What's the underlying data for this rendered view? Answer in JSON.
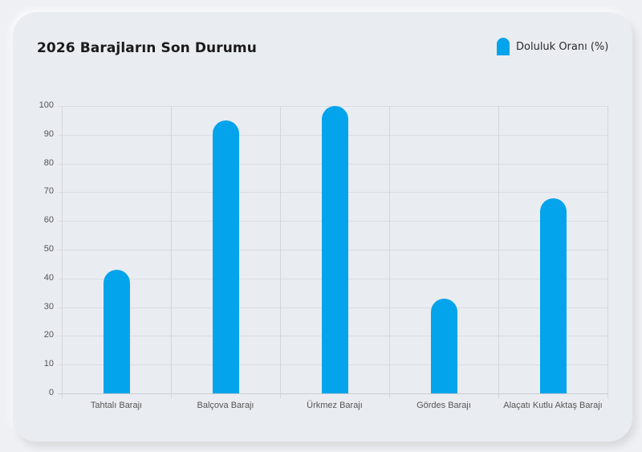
{
  "card": {
    "title": "2026 Barajların Son Durumu",
    "legend": {
      "label": "Doluluk Oranı (%)",
      "color": "#03a4eb"
    }
  },
  "chart_data": {
    "type": "bar",
    "title": "2026 Barajların Son Durumu",
    "xlabel": "",
    "ylabel": "",
    "ylim": [
      0,
      100
    ],
    "yticks": [
      0,
      10,
      20,
      30,
      40,
      50,
      60,
      70,
      80,
      90,
      100
    ],
    "grid": true,
    "legend_position": "top-right",
    "categories": [
      "Tahtalı Barajı",
      "Balçova Barajı",
      "Ürkmez Barajı",
      "Gördes Barajı",
      "Alaçatı Kutlu Aktaş Barajı"
    ],
    "series": [
      {
        "name": "Doluluk Oranı (%)",
        "color": "#03a4eb",
        "values": [
          43,
          95,
          100,
          33,
          68
        ]
      }
    ]
  }
}
